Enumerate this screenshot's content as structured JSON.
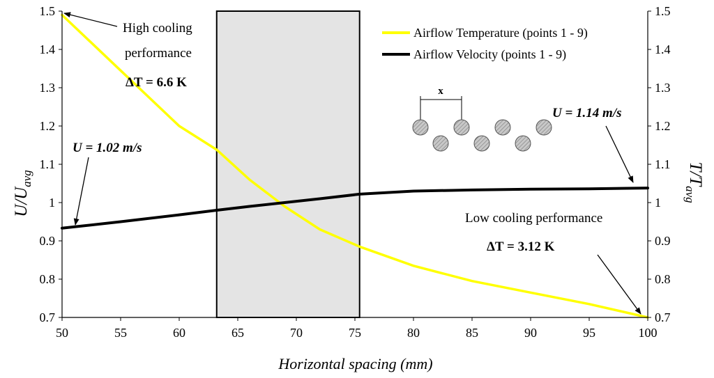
{
  "chart_data": {
    "type": "line",
    "title": "",
    "xlabel": "Horizontal spacing (mm)",
    "ylabel_left": {
      "main": "U/U",
      "sub": "avg"
    },
    "ylabel_right": {
      "main": "T/T",
      "sub": "avg"
    },
    "xlim": [
      50,
      100
    ],
    "ylim": [
      0.7,
      1.5
    ],
    "x_ticks": [
      "50",
      "55",
      "60",
      "65",
      "70",
      "75",
      "80",
      "85",
      "90",
      "95",
      "100"
    ],
    "y_ticks": [
      "0.7",
      "0.8",
      "0.9",
      "1",
      "1.1",
      "1.2",
      "1.3",
      "1.4",
      "1.5"
    ],
    "y_ticks_right": [
      "0.7",
      "0.8",
      "0.9",
      "1",
      "1.1",
      "1.2",
      "1.3",
      "1.4",
      "1.5"
    ],
    "shaded_region": {
      "x_start": 63.2,
      "x_end": 75.4
    },
    "series": [
      {
        "name": "Airflow Temperature (points 1 - 9)",
        "color": "#ffff00",
        "x": [
          50,
          55,
          60,
          63.2,
          66,
          69,
          72,
          75.4,
          80,
          85,
          90,
          95,
          100
        ],
        "y": [
          1.49,
          1.345,
          1.2,
          1.138,
          1.06,
          0.99,
          0.93,
          0.885,
          0.835,
          0.795,
          0.765,
          0.735,
          0.7
        ]
      },
      {
        "name": "Airflow Velocity (points 1 - 9)",
        "color": "#000000",
        "x": [
          50,
          55,
          60,
          63.2,
          66,
          69,
          72,
          75.4,
          80,
          85,
          90,
          95,
          100
        ],
        "y": [
          0.933,
          0.95,
          0.968,
          0.98,
          0.99,
          1.0,
          1.01,
          1.022,
          1.03,
          1.033,
          1.035,
          1.036,
          1.038
        ]
      }
    ],
    "annotations": [
      {
        "text": "High cooling"
      },
      {
        "text": "performance"
      },
      {
        "text": "ΔT = 6.6 K"
      },
      {
        "text": "U = 1.02 m/s"
      },
      {
        "text": "U = 1.14 m/s"
      },
      {
        "text": "Low cooling performance"
      },
      {
        "text": "ΔT = 3.12 K"
      }
    ],
    "inset_label": "x"
  }
}
